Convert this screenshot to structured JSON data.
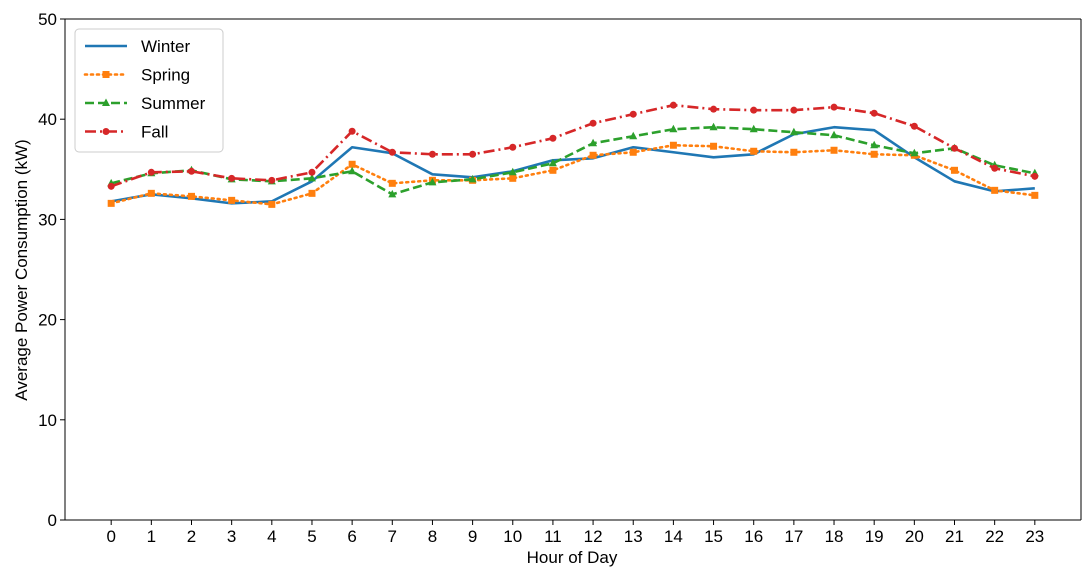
{
  "chart_data": {
    "type": "line",
    "title": "",
    "xlabel": "Hour of Day",
    "ylabel": "Average Power Consumption (kW)",
    "x": [
      0,
      1,
      2,
      3,
      4,
      5,
      6,
      7,
      8,
      9,
      10,
      11,
      12,
      13,
      14,
      15,
      16,
      17,
      18,
      19,
      20,
      21,
      22,
      23
    ],
    "xlim": [
      -1.15,
      24.15
    ],
    "ylim": [
      0,
      50
    ],
    "yticks": [
      0,
      10,
      20,
      30,
      40,
      50
    ],
    "grid": false,
    "legend_position": "top-left",
    "series": [
      {
        "name": "Winter",
        "color": "#1f77b4",
        "line_style": "solid",
        "marker": "none",
        "values": [
          31.8,
          32.5,
          32.1,
          31.6,
          31.8,
          33.8,
          37.2,
          36.6,
          34.5,
          34.2,
          34.8,
          35.9,
          36.1,
          37.2,
          36.7,
          36.2,
          36.5,
          38.5,
          39.2,
          38.9,
          36.2,
          33.8,
          32.8,
          33.1
        ]
      },
      {
        "name": "Spring",
        "color": "#ff7f0e",
        "line_style": "dotted",
        "marker": "square",
        "values": [
          31.6,
          32.6,
          32.3,
          31.9,
          31.5,
          32.6,
          35.5,
          33.6,
          33.9,
          33.9,
          34.1,
          34.9,
          36.4,
          36.7,
          37.4,
          37.3,
          36.8,
          36.7,
          36.9,
          36.5,
          36.4,
          34.9,
          32.9,
          32.4
        ]
      },
      {
        "name": "Summer",
        "color": "#2ca02c",
        "line_style": "dashed",
        "marker": "triangle",
        "values": [
          33.6,
          34.6,
          34.9,
          34.0,
          33.8,
          34.1,
          34.8,
          32.5,
          33.7,
          34.0,
          34.7,
          35.6,
          37.6,
          38.3,
          39.0,
          39.2,
          39.0,
          38.7,
          38.4,
          37.4,
          36.6,
          37.1,
          35.4,
          34.6
        ]
      },
      {
        "name": "Fall",
        "color": "#d62728",
        "line_style": "dashdot",
        "marker": "circle",
        "values": [
          33.3,
          34.7,
          34.8,
          34.1,
          33.9,
          34.7,
          38.8,
          36.7,
          36.5,
          36.5,
          37.2,
          38.1,
          39.6,
          40.5,
          41.4,
          41.0,
          40.9,
          40.9,
          41.2,
          40.6,
          39.3,
          37.1,
          35.1,
          34.3
        ]
      }
    ]
  }
}
